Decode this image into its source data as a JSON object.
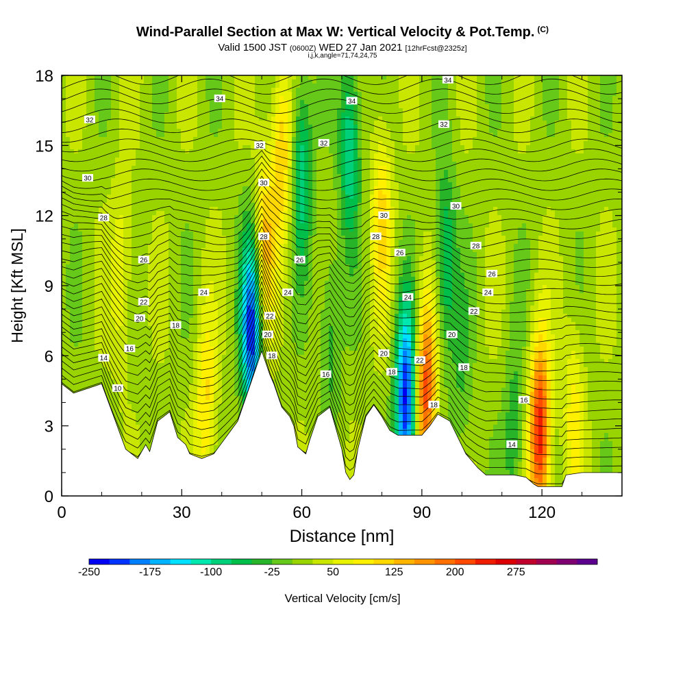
{
  "header": {
    "title": "Wind-Parallel Section at Max W: Vertical Velocity & Pot.Temp.",
    "copyright": "(C)",
    "valid_prefix": "Valid 1500 JST",
    "valid_utc": "(0600Z)",
    "valid_date": "WED 27 Jan 2021",
    "forecast": "[12hrFcst@2325z]",
    "indices": "i,j,k,angle=71,74,24,75"
  },
  "chart_data": {
    "type": "heatmap",
    "xlabel": "Distance [nm]",
    "ylabel": "Height [Kft MSL]",
    "xlim": [
      0,
      140
    ],
    "ylim": [
      0,
      18
    ],
    "xticks": [
      "0",
      "30",
      "60",
      "90",
      "120"
    ],
    "yticks": [
      "0",
      "3",
      "6",
      "9",
      "12",
      "15",
      "18"
    ],
    "terrain": [
      [
        0,
        4.8
      ],
      [
        3,
        4.4
      ],
      [
        10,
        4.8
      ],
      [
        13,
        3.4
      ],
      [
        16,
        2.0
      ],
      [
        19,
        1.6
      ],
      [
        21,
        2.2
      ],
      [
        22,
        1.9
      ],
      [
        24,
        3.2
      ],
      [
        27,
        3.6
      ],
      [
        29,
        2.5
      ],
      [
        31,
        2.2
      ],
      [
        32,
        1.8
      ],
      [
        35,
        1.6
      ],
      [
        38,
        1.8
      ],
      [
        41,
        2.5
      ],
      [
        44,
        3.2
      ],
      [
        46,
        4.2
      ],
      [
        48,
        5.2
      ],
      [
        50,
        6.2
      ],
      [
        52,
        5.2
      ],
      [
        53,
        4.8
      ],
      [
        55,
        3.8
      ],
      [
        57,
        3.4
      ],
      [
        58,
        3.0
      ],
      [
        59,
        2.1
      ],
      [
        61,
        1.8
      ],
      [
        62,
        2.4
      ],
      [
        64,
        3.4
      ],
      [
        67,
        3.8
      ],
      [
        70,
        2.0
      ],
      [
        71,
        1.0
      ],
      [
        72,
        0.7
      ],
      [
        73,
        0.9
      ],
      [
        74,
        2.0
      ],
      [
        76,
        3.4
      ],
      [
        78,
        3.9
      ],
      [
        80,
        3.4
      ],
      [
        82,
        2.8
      ],
      [
        84,
        2.6
      ],
      [
        90,
        2.6
      ],
      [
        92,
        3.0
      ],
      [
        94,
        3.5
      ],
      [
        97,
        3.2
      ],
      [
        99,
        2.5
      ],
      [
        101,
        1.8
      ],
      [
        104,
        1.2
      ],
      [
        106,
        0.9
      ],
      [
        110,
        0.9
      ],
      [
        113,
        0.9
      ],
      [
        116,
        0.8
      ],
      [
        118,
        0.5
      ],
      [
        119,
        0.4
      ],
      [
        125,
        0.4
      ],
      [
        126,
        0.9
      ],
      [
        130,
        1.0
      ],
      [
        135,
        1.0
      ],
      [
        140,
        1.0
      ]
    ],
    "w_features": [
      {
        "x": 47.5,
        "y": 7.2,
        "w": -240
      },
      {
        "x": 50.5,
        "y": 10.5,
        "w": 120
      },
      {
        "x": 55,
        "y": 14.5,
        "w": 110
      },
      {
        "x": 60,
        "y": 14,
        "w": -110
      },
      {
        "x": 67,
        "y": 7,
        "w": -60
      },
      {
        "x": 72,
        "y": 15,
        "w": -120
      },
      {
        "x": 80,
        "y": 12,
        "w": 90
      },
      {
        "x": 86,
        "y": 4,
        "w": -250
      },
      {
        "x": 91,
        "y": 4.5,
        "w": 200
      },
      {
        "x": 96,
        "y": 10,
        "w": -100
      },
      {
        "x": 113,
        "y": 2.5,
        "w": -60
      },
      {
        "x": 119.5,
        "y": 2.7,
        "w": 230
      },
      {
        "x": 128,
        "y": 3.6,
        "w": 70
      },
      {
        "x": 15,
        "y": 9.5,
        "w": 60
      },
      {
        "x": 36,
        "y": 4,
        "w": 90
      },
      {
        "x": 100,
        "y": 5,
        "w": -40
      }
    ],
    "isentrope_labels": [
      {
        "text": "32",
        "x": 7,
        "y": 16.1
      },
      {
        "text": "30",
        "x": 6.5,
        "y": 13.6
      },
      {
        "text": "28",
        "x": 10.5,
        "y": 11.9
      },
      {
        "text": "26",
        "x": 20.5,
        "y": 10.1
      },
      {
        "text": "24",
        "x": 35.5,
        "y": 8.7
      },
      {
        "text": "22",
        "x": 20.5,
        "y": 8.3
      },
      {
        "text": "20",
        "x": 19.5,
        "y": 7.6
      },
      {
        "text": "18",
        "x": 28.5,
        "y": 7.3
      },
      {
        "text": "16",
        "x": 17,
        "y": 6.3
      },
      {
        "text": "14",
        "x": 10.5,
        "y": 5.9
      },
      {
        "text": "10",
        "x": 14,
        "y": 4.6
      },
      {
        "text": "34",
        "x": 39.5,
        "y": 17.0
      },
      {
        "text": "32",
        "x": 49.5,
        "y": 15.0
      },
      {
        "text": "30",
        "x": 50.5,
        "y": 13.4
      },
      {
        "text": "28",
        "x": 50.5,
        "y": 11.1
      },
      {
        "text": "26",
        "x": 59.5,
        "y": 10.1
      },
      {
        "text": "24",
        "x": 56.5,
        "y": 8.7
      },
      {
        "text": "22",
        "x": 52,
        "y": 7.7
      },
      {
        "text": "20",
        "x": 51.5,
        "y": 6.9
      },
      {
        "text": "18",
        "x": 52.5,
        "y": 6.0
      },
      {
        "text": "16",
        "x": 66,
        "y": 5.2
      },
      {
        "text": "34",
        "x": 72.5,
        "y": 16.9
      },
      {
        "text": "32",
        "x": 65.5,
        "y": 15.1
      },
      {
        "text": "30",
        "x": 80.5,
        "y": 12.0
      },
      {
        "text": "28",
        "x": 78.5,
        "y": 11.1
      },
      {
        "text": "26",
        "x": 84.5,
        "y": 10.4
      },
      {
        "text": "24",
        "x": 86.5,
        "y": 8.5
      },
      {
        "text": "20",
        "x": 80.5,
        "y": 6.1
      },
      {
        "text": "18",
        "x": 82.5,
        "y": 5.3
      },
      {
        "text": "22",
        "x": 89.5,
        "y": 5.8
      },
      {
        "text": "18",
        "x": 93,
        "y": 3.9
      },
      {
        "text": "34",
        "x": 96.5,
        "y": 17.8
      },
      {
        "text": "32",
        "x": 95.5,
        "y": 15.9
      },
      {
        "text": "30",
        "x": 98.5,
        "y": 12.4
      },
      {
        "text": "28",
        "x": 103.5,
        "y": 10.7
      },
      {
        "text": "26",
        "x": 107.5,
        "y": 9.5
      },
      {
        "text": "24",
        "x": 106.5,
        "y": 8.7
      },
      {
        "text": "22",
        "x": 103,
        "y": 7.9
      },
      {
        "text": "20",
        "x": 97.5,
        "y": 6.9
      },
      {
        "text": "18",
        "x": 100.5,
        "y": 5.5
      },
      {
        "text": "16",
        "x": 115.5,
        "y": 4.1
      },
      {
        "text": "14",
        "x": 112.5,
        "y": 2.2
      }
    ]
  },
  "colorbar": {
    "title": "Vertical Velocity [cm/s]",
    "labels": [
      "-250",
      "-175",
      "-100",
      "-25",
      "50",
      "125",
      "200",
      "275"
    ],
    "label_values": [
      -250,
      -175,
      -100,
      -25,
      50,
      125,
      200,
      275
    ],
    "bin_min": -250,
    "bin_width": 25,
    "colors": [
      "#0000f2",
      "#0033ff",
      "#0080ff",
      "#00b4ff",
      "#00e0ff",
      "#00e8b0",
      "#00d07a",
      "#00be4a",
      "#28b428",
      "#66c818",
      "#99d400",
      "#c8e600",
      "#e6f200",
      "#fff000",
      "#ffd800",
      "#ffb400",
      "#ff9400",
      "#ff7000",
      "#ff4800",
      "#f01c00",
      "#dc0000",
      "#c0002a",
      "#a00050",
      "#7e0072",
      "#5c0090"
    ]
  }
}
